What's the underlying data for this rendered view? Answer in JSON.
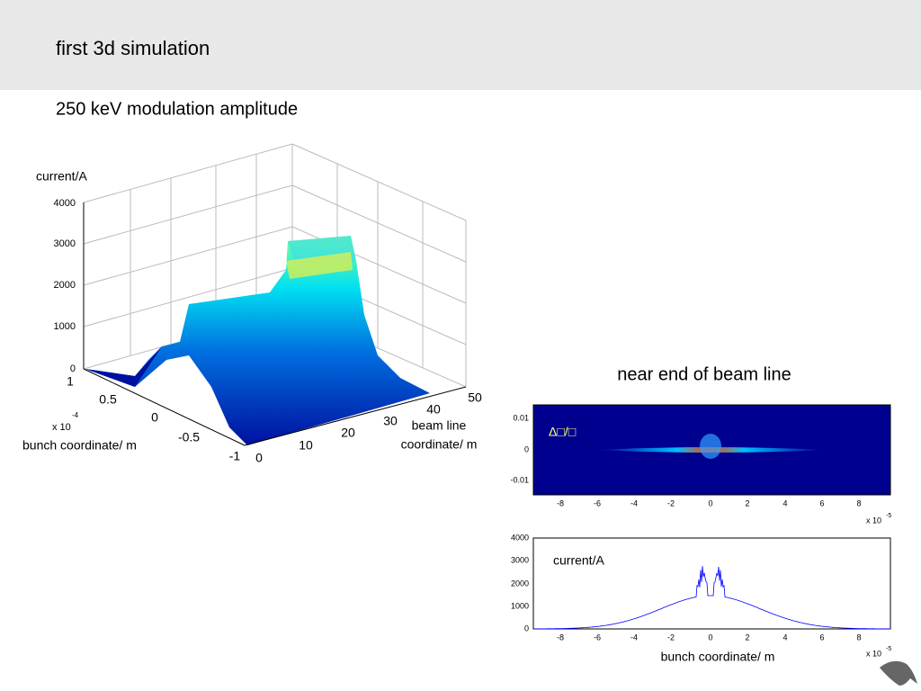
{
  "header": {
    "title": "first 3d simulation"
  },
  "subtitle": "250 keV modulation amplitude",
  "plot3d": {
    "zlabel": "current/A",
    "zticks": [
      "4000",
      "3000",
      "2000",
      "1000",
      "0"
    ],
    "yticks": [
      "1",
      "0.5",
      "0",
      "-0.5",
      "-1"
    ],
    "yexp": "x 10",
    "yexp_power": "-4",
    "ylabel": "bunch coordinate/ m",
    "xticks": [
      "0",
      "10",
      "20",
      "30",
      "40",
      "50"
    ],
    "xlabel": [
      "beam line",
      "coordinate/ m"
    ]
  },
  "phase_plot": {
    "title": "near end of beam line",
    "label": "Δ□/□",
    "yticks": [
      "0.01",
      "0",
      "-0.01"
    ],
    "xticks": [
      "-8",
      "-6",
      "-4",
      "-2",
      "0",
      "2",
      "4",
      "6",
      "8"
    ],
    "xexp": "x 10",
    "xexp_power": "-5"
  },
  "current_plot": {
    "label": "current/A",
    "yticks": [
      "4000",
      "3000",
      "2000",
      "1000",
      "0"
    ],
    "xticks": [
      "-8",
      "-6",
      "-4",
      "-2",
      "0",
      "2",
      "4",
      "6",
      "8"
    ],
    "xexp": "x 10",
    "xexp_power": "-5",
    "xlabel": "bunch coordinate/ m"
  }
}
